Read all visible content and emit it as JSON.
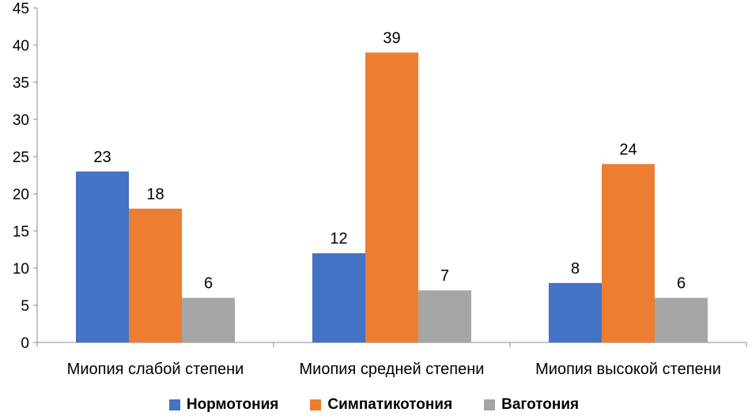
{
  "chart_data": {
    "type": "bar",
    "categories": [
      "Миопия слабой степени",
      "Миопия средней степени",
      "Миопия высокой степени"
    ],
    "series": [
      {
        "name": "Нормотония",
        "values": [
          23,
          12,
          8
        ],
        "color": "#4472C4"
      },
      {
        "name": "Симпатикотония",
        "values": [
          18,
          39,
          24
        ],
        "color": "#ED7D31"
      },
      {
        "name": "Ваготония",
        "values": [
          6,
          7,
          6
        ],
        "color": "#A5A5A5"
      }
    ],
    "ylim": [
      0,
      45
    ],
    "yticks": [
      0,
      5,
      10,
      15,
      20,
      25,
      30,
      35,
      40,
      45
    ],
    "grid": false,
    "data_labels": true,
    "legend_position": "bottom"
  }
}
